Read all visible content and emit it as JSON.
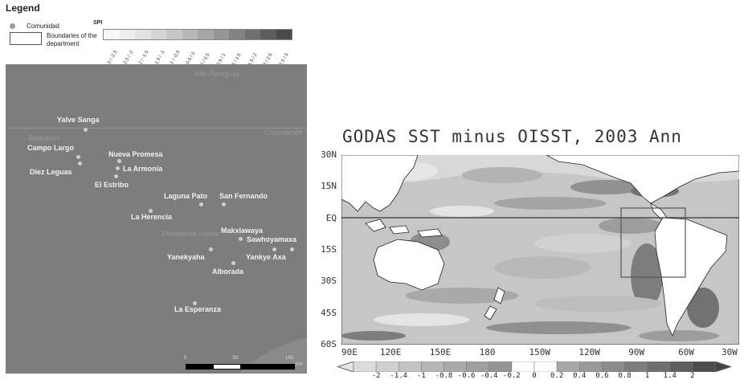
{
  "legend": {
    "title": "Legend",
    "community_label": "Comunidad",
    "boundary_label_1": "Boundaries of the",
    "boundary_label_2": "department",
    "spi_title": "SPI",
    "spi_classes": [
      "-3 / -2.5",
      "-2.5 / -2",
      "-2 / -1.5",
      "-1.5 / -1",
      "-1 / -0.5",
      "-0.5 / 0",
      "0 / 0.5",
      "0.5 / 1",
      "1 / 1.5",
      "1.5 / 2",
      "2 / 2.5",
      "2.5 / 3"
    ],
    "spi_colors": [
      "#f7f7f7",
      "#eeeeee",
      "#e2e2e2",
      "#d6d6d6",
      "#c7c7c7",
      "#b8b8b8",
      "#a6a6a6",
      "#959595",
      "#838383",
      "#707070",
      "#5e5e5e",
      "#4a4a4a"
    ]
  },
  "paraguay_map": {
    "background_color": "#7d7d7d",
    "regions": [
      "Alto Paraguay",
      "Boquerón",
      "Concepción",
      "Presidente Hayes"
    ],
    "communities": [
      "Yalve Sanga",
      "Campo Largo",
      "Nueva Promesa",
      "La Armonia",
      "Diez Leguas",
      "El Estribo",
      "Laguna Pato",
      "San Fernando",
      "La Herencia",
      "Makxlawaya",
      "Sawhoyamaxa",
      "Yanekyaha",
      "Yankye Axa",
      "Alborada",
      "La Esperanza"
    ],
    "scale_labels": [
      "0",
      "50",
      "100",
      "Km"
    ]
  },
  "sst_map": {
    "title": "GODAS SST minus OISST, 2003 Ann",
    "lat_labels": [
      "30N",
      "15N",
      "EQ",
      "15S",
      "30S",
      "45S",
      "60S"
    ],
    "lon_labels": [
      "90E",
      "120E",
      "150E",
      "180",
      "150W",
      "120W",
      "90W",
      "60W",
      "30W"
    ],
    "colorbar_labels": [
      "-2",
      "-1.4",
      "-1",
      "-0.8",
      "-0.6",
      "-0.4",
      "-0.2",
      "0",
      "0.2",
      "0.4",
      "0.6",
      "0.8",
      "1",
      "1.4",
      "2"
    ],
    "colorbar_colors": [
      "#dcdcdc",
      "#d0d0d0",
      "#c3c3c3",
      "#b6b6b6",
      "#aaaaaa",
      "#9f9f9f",
      "#949494",
      "#ffffff",
      "#ffffff",
      "#a8a8a8",
      "#9a9a9a",
      "#8c8c8c",
      "#7d7d7d",
      "#6e6e6e",
      "#5e5e5e",
      "#4d4d4d"
    ]
  }
}
